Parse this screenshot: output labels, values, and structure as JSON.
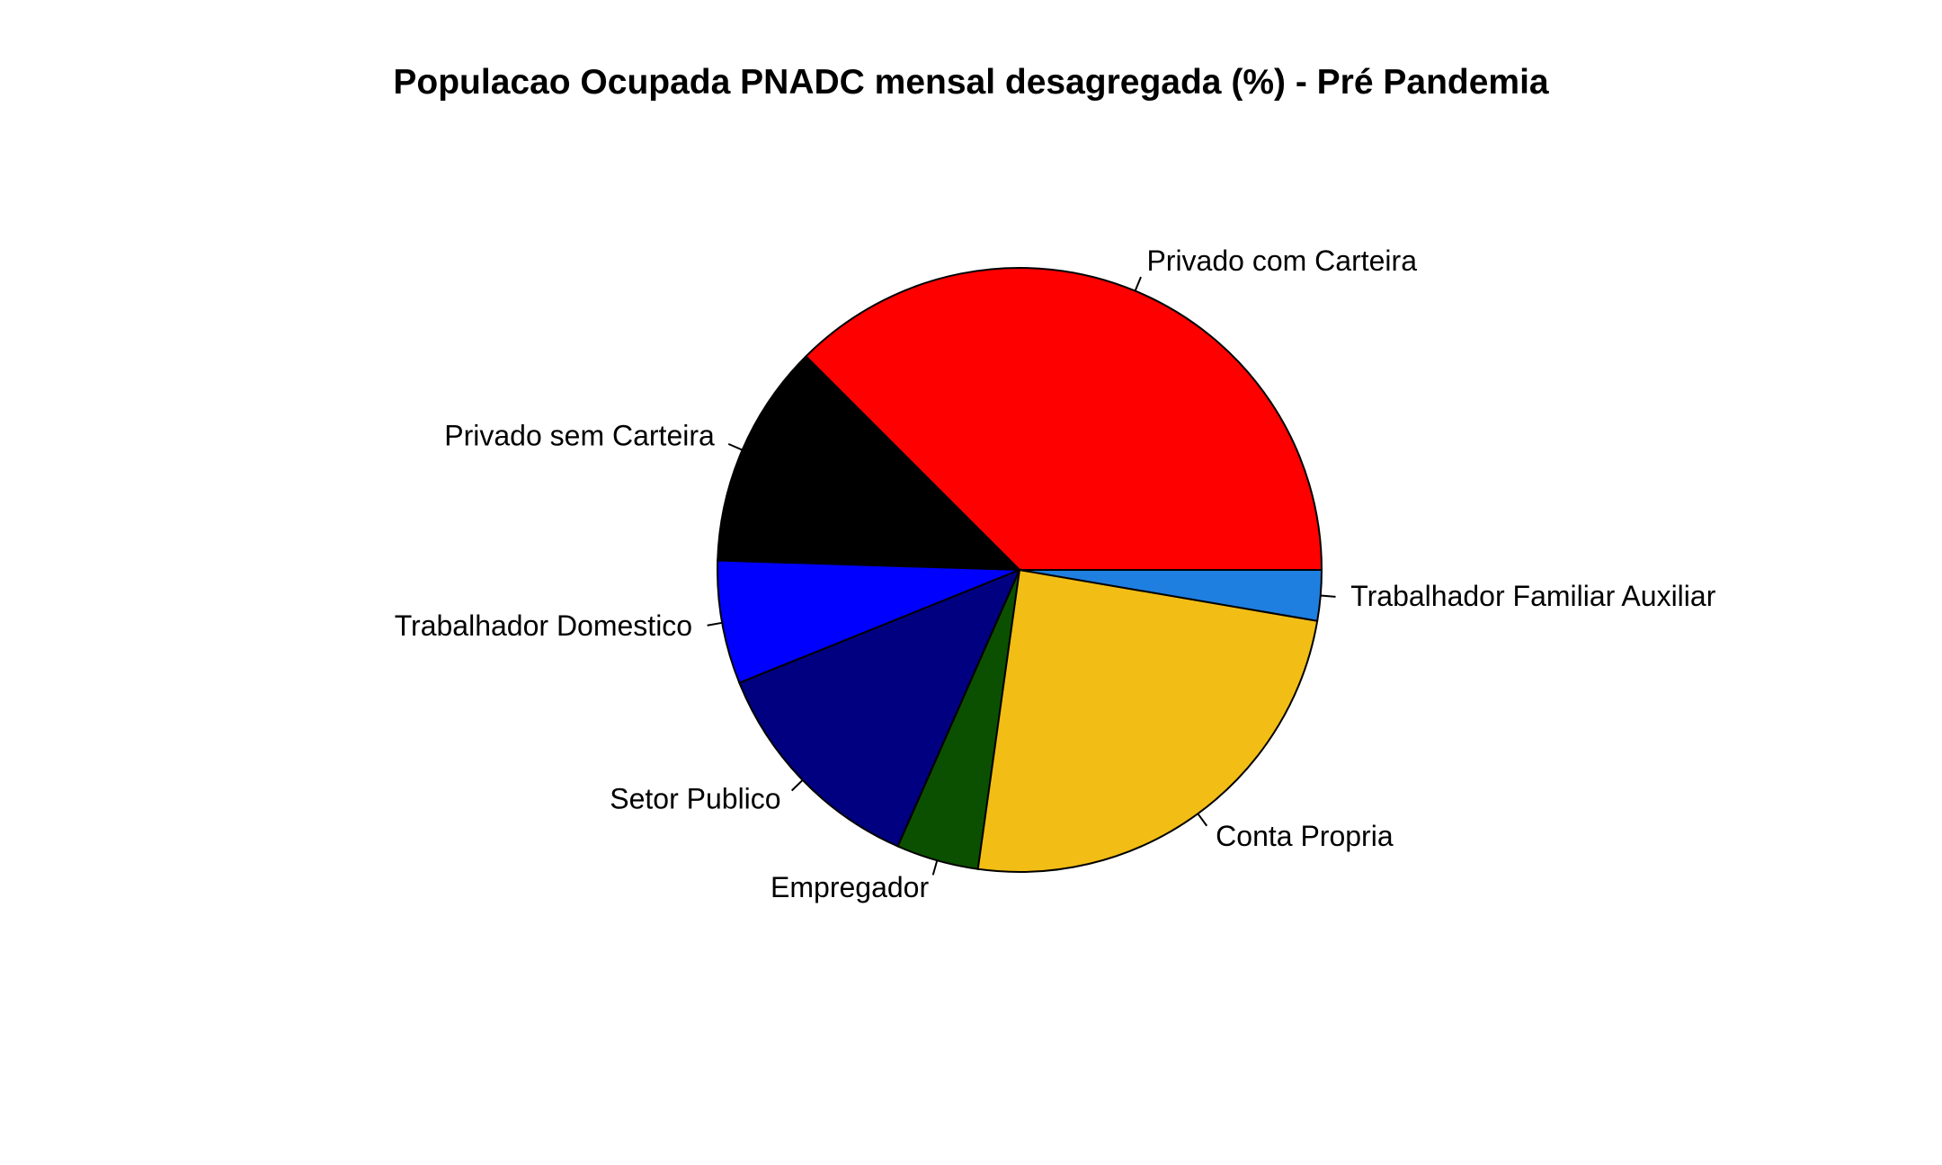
{
  "chart_data": {
    "type": "pie",
    "title": "Populacao Ocupada PNADC mensal desagregada (%) - Pré Pandemia",
    "slices": [
      {
        "label": "Privado com Carteira",
        "value": 37.5,
        "color": "#FF0000"
      },
      {
        "label": "Privado sem Carteira",
        "value": 12.0,
        "color": "#000000"
      },
      {
        "label": "Trabalhador Domestico",
        "value": 6.6,
        "color": "#0000FF"
      },
      {
        "label": "Setor Publico",
        "value": 12.3,
        "color": "#000080"
      },
      {
        "label": "Empregador",
        "value": 4.4,
        "color": "#0B5000"
      },
      {
        "label": "Conta Propria",
        "value": 24.5,
        "color": "#F2BD15"
      },
      {
        "label": "Trabalhador Familiar Auxiliar",
        "value": 2.7,
        "color": "#1E7FE0"
      }
    ]
  }
}
